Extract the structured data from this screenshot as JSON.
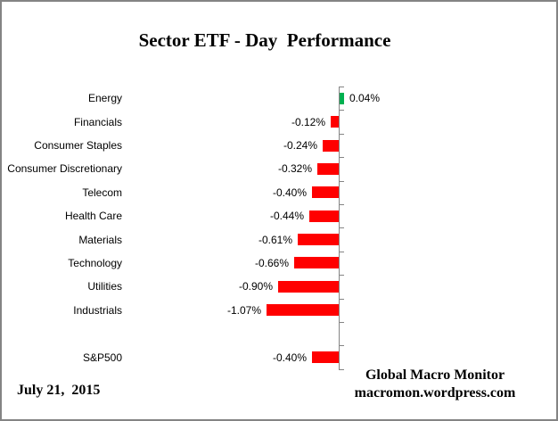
{
  "title": "Sector ETF - Day  Performance",
  "chart_data": {
    "type": "bar",
    "orientation": "horizontal",
    "title": "Sector ETF - Day  Performance",
    "value_format": "percent",
    "gridlines": false,
    "value_axis_labels_visible": false,
    "positive_color": "#00B050",
    "negative_color": "#FF0000",
    "axis_color": "#848484",
    "slots_total": 12,
    "rows": [
      {
        "category": "Energy",
        "value": 0.04,
        "label": "0.04%",
        "slot": 0
      },
      {
        "category": "Financials",
        "value": -0.12,
        "label": "-0.12%",
        "slot": 1
      },
      {
        "category": "Consumer Staples",
        "value": -0.24,
        "label": "-0.24%",
        "slot": 2
      },
      {
        "category": "Consumer Discretionary",
        "value": -0.32,
        "label": "-0.32%",
        "slot": 3
      },
      {
        "category": "Telecom",
        "value": -0.4,
        "label": "-0.40%",
        "slot": 4
      },
      {
        "category": "Health Care",
        "value": -0.44,
        "label": "-0.44%",
        "slot": 5
      },
      {
        "category": "Materials",
        "value": -0.61,
        "label": "-0.61%",
        "slot": 6
      },
      {
        "category": "Technology",
        "value": -0.66,
        "label": "-0.66%",
        "slot": 7
      },
      {
        "category": "Utilities",
        "value": -0.9,
        "label": "-0.90%",
        "slot": 8
      },
      {
        "category": "Industrials",
        "value": -1.07,
        "label": "-1.07%",
        "slot": 9
      },
      {
        "category": "S&P500",
        "value": -0.4,
        "label": "-0.40%",
        "slot": 11
      }
    ]
  },
  "footer": {
    "date": "July 21,  2015",
    "attribution": [
      "Global Macro Monitor",
      "macromon.wordpress.com"
    ]
  },
  "colors": {
    "positive": "#00B050",
    "negative": "#FF0000",
    "axis": "#848484",
    "border": "#848484"
  }
}
